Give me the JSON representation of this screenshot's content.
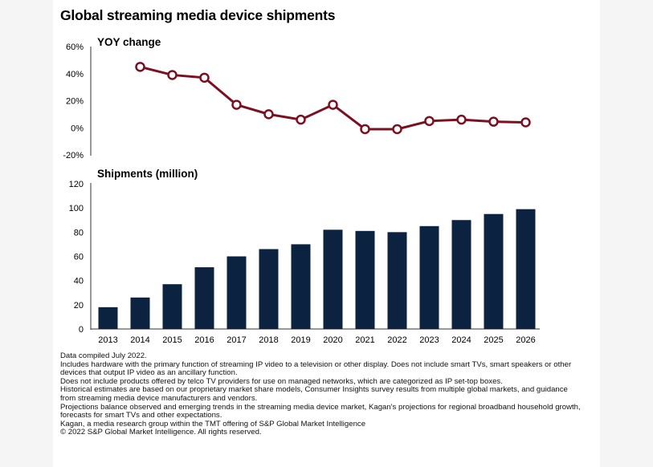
{
  "title": "Global streaming media device shipments",
  "colors": {
    "line": "#7a1020",
    "marker_fill": "#ffffff",
    "bar": "#0b2340",
    "axis": "#333333"
  },
  "chart_data": [
    {
      "type": "line",
      "title": "YOY change",
      "x": [
        "2014",
        "2015",
        "2016",
        "2017",
        "2018",
        "2019",
        "2020",
        "2021",
        "2022",
        "2023",
        "2024",
        "2025",
        "2026"
      ],
      "series": [
        {
          "values": [
            45,
            39,
            37,
            17,
            10,
            6,
            17,
            -1,
            -1,
            5,
            6,
            4.5,
            4
          ]
        }
      ],
      "ylim": [
        -20,
        60
      ],
      "y_ticks": [
        "60%",
        "40%",
        "20%",
        "0%",
        "-20%"
      ],
      "grid": false
    },
    {
      "type": "bar",
      "title": "Shipments (million)",
      "categories": [
        "2013",
        "2014",
        "2015",
        "2016",
        "2017",
        "2018",
        "2019",
        "2020",
        "2021",
        "2022",
        "2023",
        "2024",
        "2025",
        "2026"
      ],
      "values": [
        18,
        26,
        37,
        51,
        60,
        66,
        70,
        82,
        81,
        80,
        85,
        90,
        95,
        99
      ],
      "ylim": [
        0,
        120
      ],
      "y_ticks": [
        "120",
        "100",
        "80",
        "60",
        "40",
        "20",
        "0"
      ],
      "grid": false
    }
  ],
  "notes": [
    "Data compiled July 2022.",
    "Includes hardware with the primary function of streaming IP video to a television or other display. Does not include smart TVs, smart speakers or other devices that output IP video as an ancillary function.",
    "Does not include products offered by telco TV providers for use on managed networks, which are categorized as IP set-top boxes.",
    "Historical estimates are based on our proprietary market share models, Consumer Insights survey results from multiple global markets, and guidance from streaming media device manufacturers and vendors.",
    "Projections balance observed and emerging trends in the streaming media device market, Kagan's projections for regional broadband household growth, forecasts for smart TVs and other expectations.",
    "Kagan, a media research group within the TMT offering of S&P Global Market Intelligence",
    "© 2022 S&P Global Market Intelligence. All rights reserved."
  ]
}
